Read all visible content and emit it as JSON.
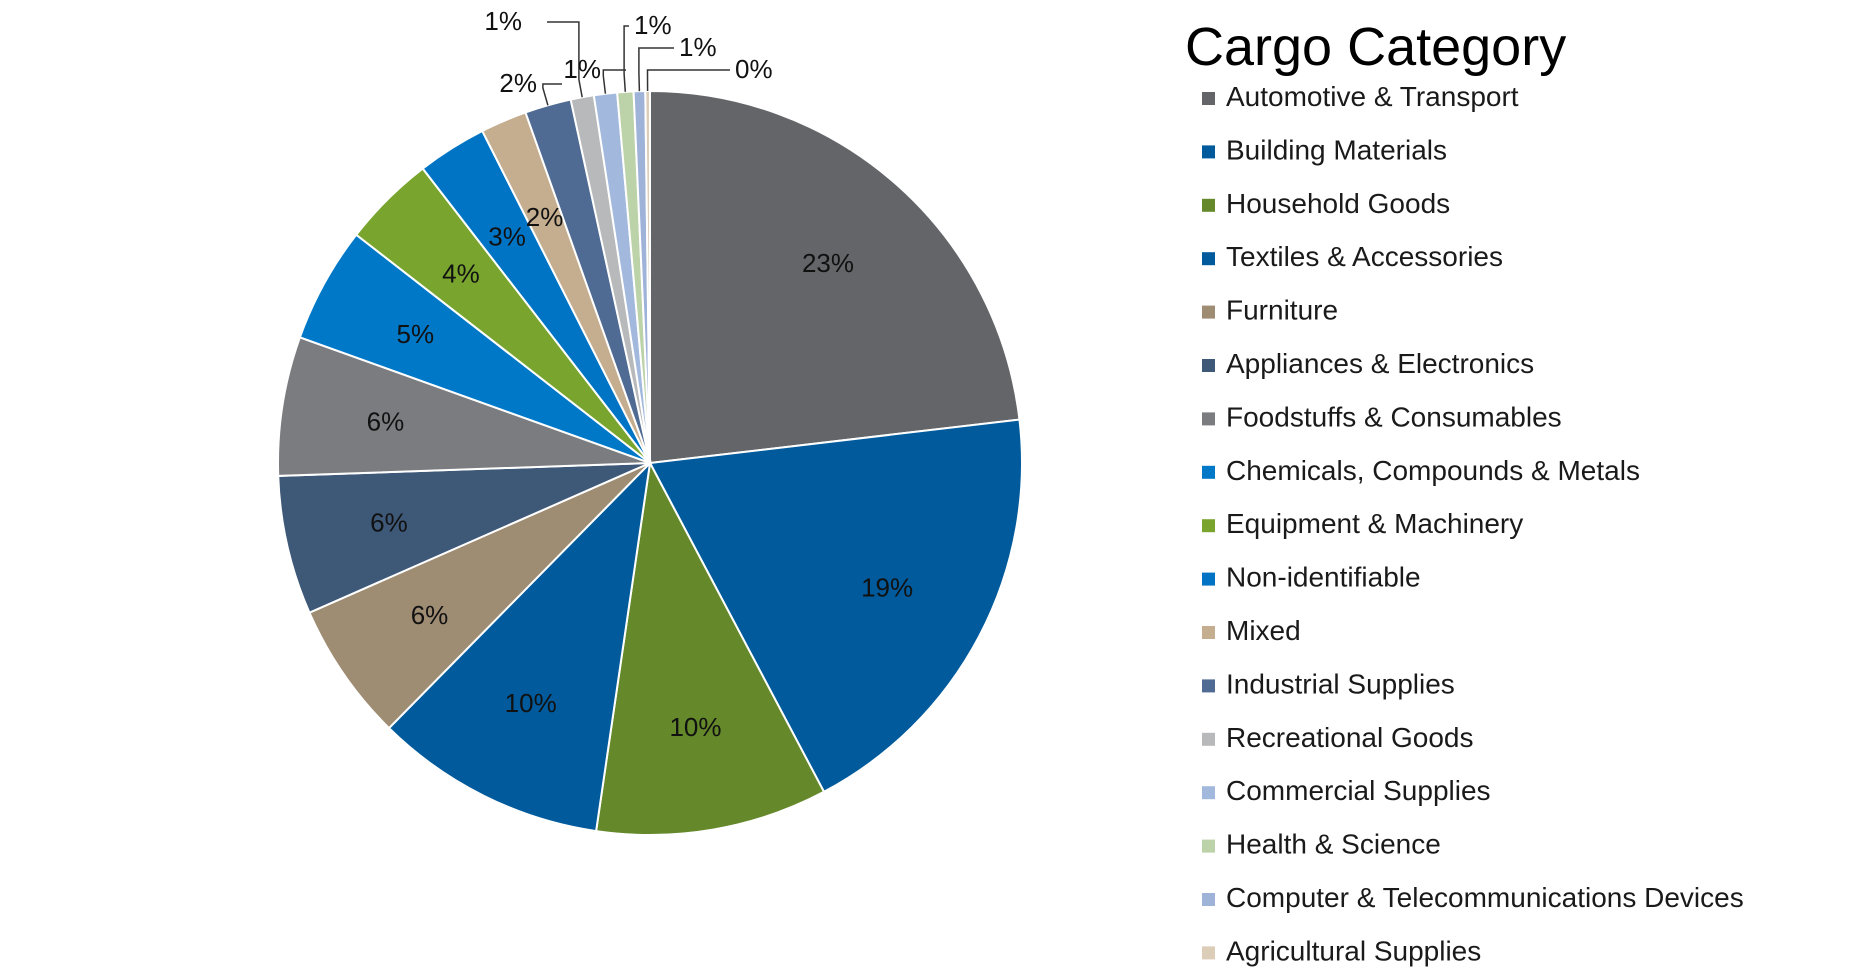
{
  "chart_data": {
    "type": "pie",
    "legend_title": "Cargo Category",
    "legend_position": "right",
    "slices": [
      {
        "name": "Automotive & Transport",
        "value": 23,
        "label": "23%",
        "color": "#636569"
      },
      {
        "name": "Building Materials",
        "value": 19,
        "label": "19%",
        "color": "#005a9c"
      },
      {
        "name": "Household Goods",
        "value": 10,
        "label": "10%",
        "color": "#64882a"
      },
      {
        "name": "Textiles & Accessories",
        "value": 10,
        "label": "10%",
        "color": "#005a9c"
      },
      {
        "name": "Furniture",
        "value": 6,
        "label": "6%",
        "color": "#9e8c73"
      },
      {
        "name": "Appliances & Electronics",
        "value": 6,
        "label": "6%",
        "color": "#3e5878"
      },
      {
        "name": "Foodstuffs & Consumables",
        "value": 6,
        "label": "6%",
        "color": "#7a7c80"
      },
      {
        "name": "Chemicals, Compounds & Metals",
        "value": 5,
        "label": "5%",
        "color": "#0078c8"
      },
      {
        "name": "Equipment & Machinery",
        "value": 4,
        "label": "4%",
        "color": "#79a52f"
      },
      {
        "name": "Non-identifiable",
        "value": 3,
        "label": "3%",
        "color": "#0074c4"
      },
      {
        "name": "Mixed",
        "value": 2,
        "label": "2%",
        "color": "#c5ad8f"
      },
      {
        "name": "Industrial Supplies",
        "value": 2,
        "label": "2%",
        "color": "#4f6b93"
      },
      {
        "name": "Recreational Goods",
        "value": 1,
        "label": "1%",
        "color": "#b8b9bb"
      },
      {
        "name": "Commercial Supplies",
        "value": 1,
        "label": "1%",
        "color": "#a2b9dd"
      },
      {
        "name": "Health & Science",
        "value": 0.7,
        "label": "1%",
        "color": "#bcd2a8"
      },
      {
        "name": "Computer & Telecommunications Devices",
        "value": 0.5,
        "label": "1%",
        "color": "#9fb3d8"
      },
      {
        "name": "Agricultural Supplies",
        "value": 0.2,
        "label": "0%",
        "color": "#dccdb8"
      }
    ]
  }
}
